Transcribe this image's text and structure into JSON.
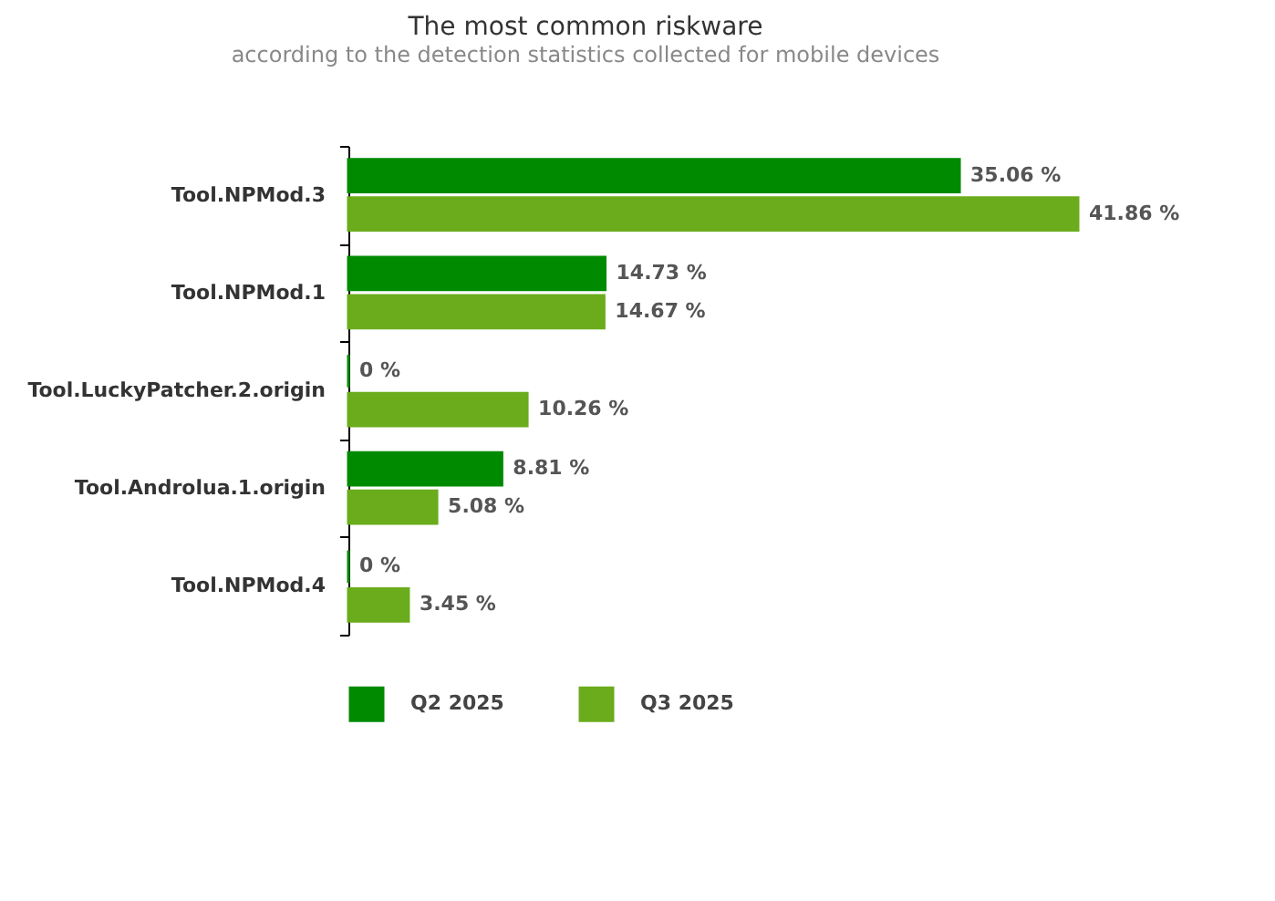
{
  "chart_data": {
    "type": "bar",
    "orientation": "horizontal",
    "title": "The most common riskware",
    "subtitle": "according to the detection statistics collected for mobile devices",
    "categories": [
      "Tool.NPMod.3",
      "Tool.NPMod.1",
      "Tool.LuckyPatcher.2.origin",
      "Tool.Androlua.1.origin",
      "Tool.NPMod.4"
    ],
    "series": [
      {
        "name": "Q2 2025",
        "color": "#008a00",
        "values": [
          35.06,
          14.73,
          0,
          8.81,
          0
        ],
        "value_labels": [
          "35.06 %",
          "14.73 %",
          "0 %",
          "8.81 %",
          "0 %"
        ]
      },
      {
        "name": "Q3 2025",
        "color": "#6aac1c",
        "values": [
          41.86,
          14.67,
          10.26,
          5.08,
          3.45
        ],
        "value_labels": [
          "41.86 %",
          "14.67 %",
          "10.26 %",
          "5.08 %",
          "3.45 %"
        ]
      }
    ],
    "legend": "bottom left"
  }
}
